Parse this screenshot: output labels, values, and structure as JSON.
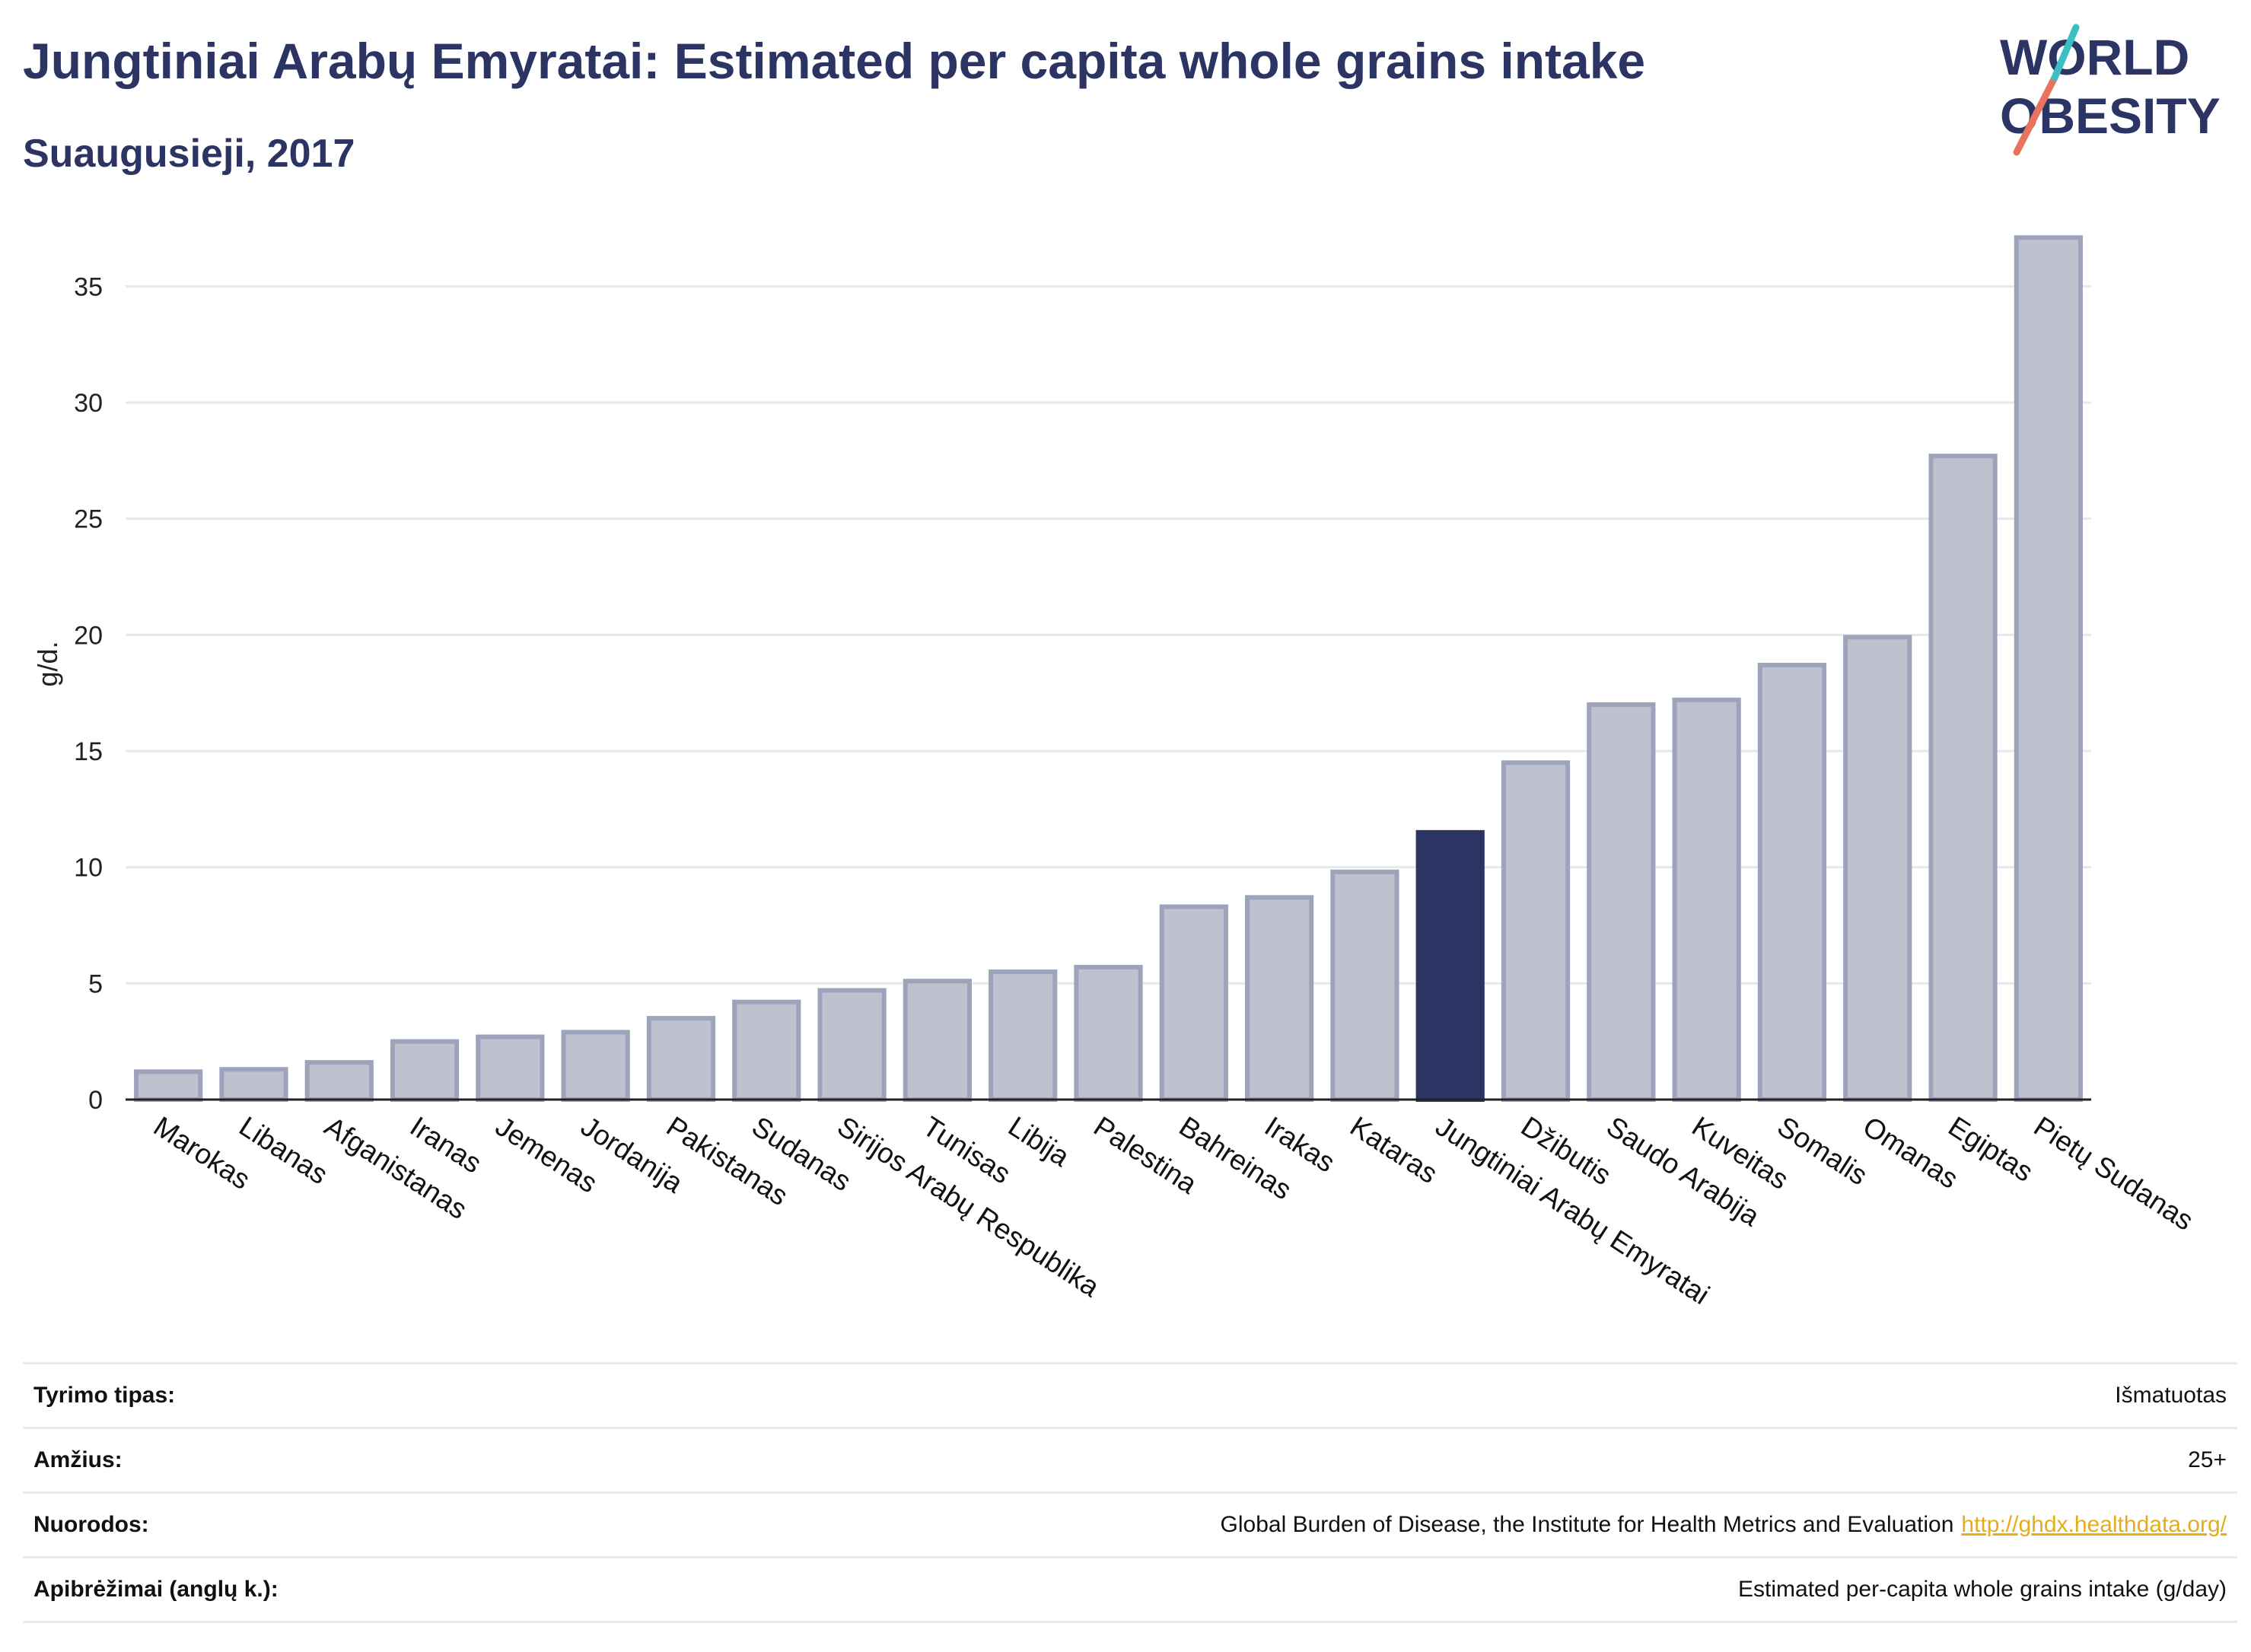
{
  "header": {
    "title": "Jungtiniai Arabų Emyratai: Estimated per capita whole grains intake",
    "subtitle": "Suaugusieji, 2017"
  },
  "logo": {
    "line1": "WORLD",
    "line2": "OBESITY"
  },
  "colors": {
    "highlight": "#2b3463",
    "bar": "#bfc1cf",
    "bar_stroke": "#9ea3bc",
    "grid": "#e6e8ec",
    "title": "#2b3463",
    "link": "#e3ad1b"
  },
  "chart_data": {
    "type": "bar",
    "ylabel": "g/d.",
    "ylim": [
      0,
      37.5
    ],
    "yticks": [
      0,
      5,
      10,
      15,
      20,
      25,
      30,
      35
    ],
    "grid": true,
    "highlight_category": "Jungtiniai Arabų Emyratai",
    "categories": [
      "Marokas",
      "Libanas",
      "Afganistanas",
      "Iranas",
      "Jemenas",
      "Jordanija",
      "Pakistanas",
      "Sudanas",
      "Sirijos Arabų Respublika",
      "Tunisas",
      "Libija",
      "Palestina",
      "Bahreinas",
      "Irakas",
      "Kataras",
      "Jungtiniai Arabų Emyratai",
      "Džibutis",
      "Saudo Arabija",
      "Kuveitas",
      "Somalis",
      "Omanas",
      "Egiptas",
      "Pietų Sudanas"
    ],
    "values": [
      1.2,
      1.3,
      1.6,
      2.5,
      2.7,
      2.9,
      3.5,
      4.2,
      4.7,
      5.1,
      5.5,
      5.7,
      8.3,
      8.7,
      9.8,
      11.5,
      14.5,
      17.0,
      17.2,
      18.7,
      19.9,
      27.7,
      37.1
    ]
  },
  "footer": {
    "rows": [
      {
        "label": "Tyrimo tipas:",
        "value": "Išmatuotas"
      },
      {
        "label": "Amžius:",
        "value": "25+"
      },
      {
        "label": "Nuorodos:",
        "value": "Global Burden of Disease, the Institute for Health Metrics and Evaluation",
        "link": "http://ghdx.healthdata.org/"
      },
      {
        "label": "Apibrėžimai (anglų k.):",
        "value": "Estimated per-capita whole grains intake (g/day)"
      }
    ]
  }
}
